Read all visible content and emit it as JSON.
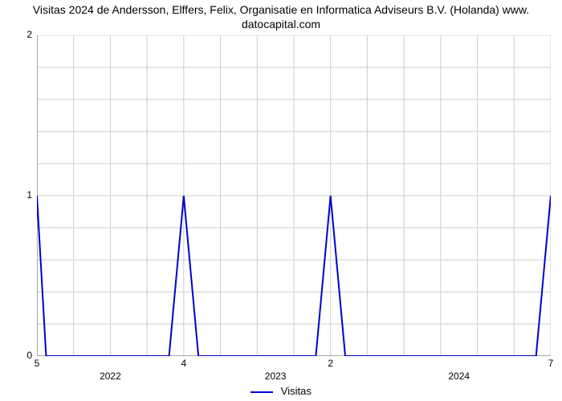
{
  "title_line1": "Visitas 2024 de Andersson, Elffers, Felix, Organisatie en Informatica Adviseurs B.V. (Holanda) www.",
  "title_line2": "datocapital.com",
  "chart": {
    "type": "line",
    "background_color": "#ffffff",
    "grid_color": "#cccccc",
    "axis_color": "#555555",
    "tick_color": "#555555",
    "line_color": "#0000cc",
    "line_width": 2,
    "title_fontsize": 14,
    "label_fontsize": 12,
    "x_index_min": 0,
    "x_index_max": 14,
    "secondary_ticks": [
      {
        "idx": 0,
        "label": "5"
      },
      {
        "idx": 4,
        "label": "4"
      },
      {
        "idx": 8,
        "label": "2"
      },
      {
        "idx": 14,
        "label": "7"
      }
    ],
    "year_bands": [
      {
        "start": 0,
        "end": 4,
        "label": "2022"
      },
      {
        "start": 4,
        "end": 9,
        "label": "2023"
      },
      {
        "start": 9,
        "end": 14,
        "label": "2024"
      }
    ],
    "ylim": [
      0,
      2
    ],
    "yticks": [
      0,
      1,
      2
    ],
    "y_major_grid": [
      0,
      1,
      2
    ],
    "y_minor_step": 0.2,
    "x_minor_idx": [
      0,
      1,
      2,
      3,
      4,
      5,
      6,
      7,
      8,
      9,
      10,
      11,
      12,
      13,
      14
    ],
    "series": {
      "name": "Visitas",
      "points": [
        {
          "x": 0,
          "y": 1
        },
        {
          "x": 0.25,
          "y": 0
        },
        {
          "x": 3.6,
          "y": 0
        },
        {
          "x": 4.0,
          "y": 1
        },
        {
          "x": 4.4,
          "y": 0
        },
        {
          "x": 7.6,
          "y": 0
        },
        {
          "x": 8.0,
          "y": 1
        },
        {
          "x": 8.4,
          "y": 0
        },
        {
          "x": 13.6,
          "y": 0
        },
        {
          "x": 14.0,
          "y": 1
        }
      ]
    }
  },
  "legend_label": "Visitas"
}
